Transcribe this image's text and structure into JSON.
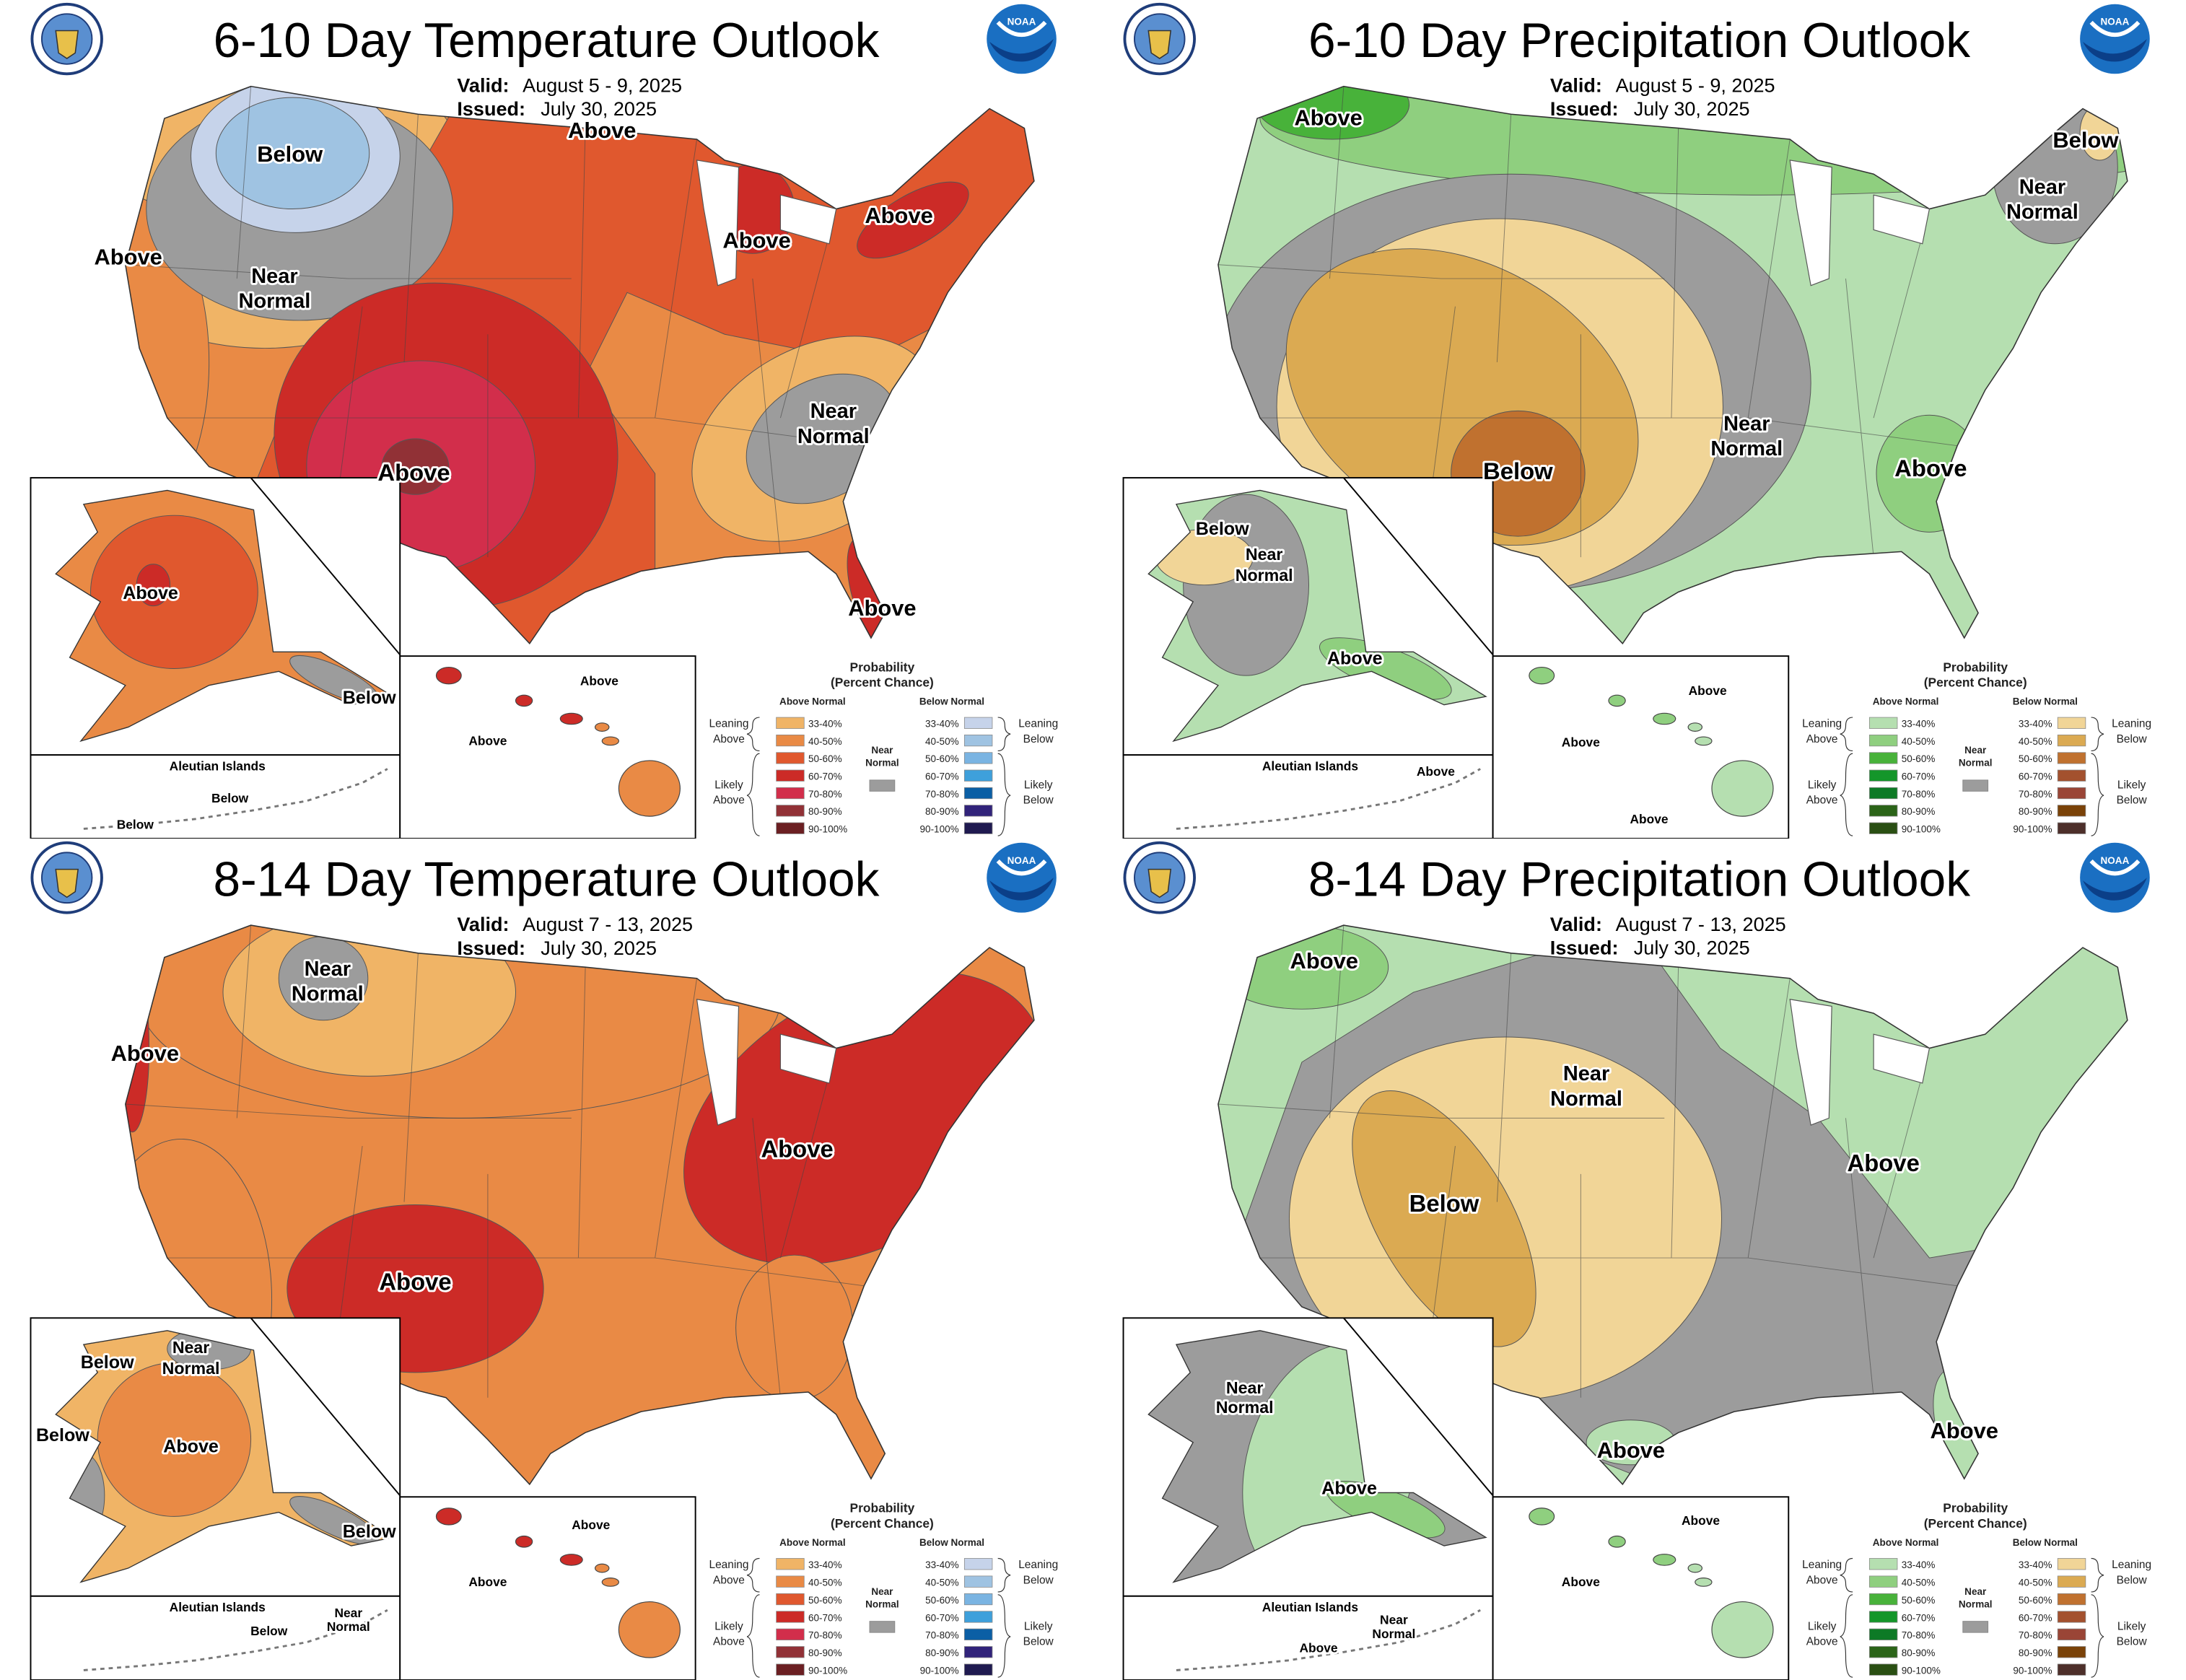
{
  "panels": [
    {
      "title": "6-10 Day Temperature Outlook",
      "valid_label": "Valid:",
      "valid": "August 5 - 9, 2025",
      "issued_label": "Issued:",
      "issued": "July 30, 2025",
      "variable": "temperature",
      "labels": [
        "Below",
        "Above",
        "Above",
        "Near",
        "Normal",
        "Above",
        "Above",
        "Near",
        "Normal",
        "Above",
        "Above",
        "Above",
        "Below",
        "Above",
        "Above",
        "Below",
        "Below"
      ]
    },
    {
      "title": "6-10 Day Precipitation Outlook",
      "valid_label": "Valid:",
      "valid": "August 5 - 9, 2025",
      "issued_label": "Issued:",
      "issued": "July 30, 2025",
      "variable": "precipitation",
      "labels": [
        "Above",
        "Below",
        "Near",
        "Normal",
        "Below",
        "Near",
        "Normal",
        "Above",
        "Below",
        "Near",
        "Normal",
        "Above",
        "Above",
        "Above",
        "Above",
        "Above"
      ]
    },
    {
      "title": "8-14 Day Temperature Outlook",
      "valid_label": "Valid:",
      "valid": "August 7 - 13, 2025",
      "issued_label": "Issued:",
      "issued": "July 30, 2025",
      "variable": "temperature",
      "labels": [
        "Near",
        "Normal",
        "Above",
        "Above",
        "Above",
        "Below",
        "Near",
        "Normal",
        "Below",
        "Above",
        "Below",
        "Above",
        "Above",
        "Below",
        "Near",
        "Normal"
      ]
    },
    {
      "title": "8-14 Day Precipitation Outlook",
      "valid_label": "Valid:",
      "valid": "August 7 - 13, 2025",
      "issued_label": "Issued:",
      "issued": "July 30, 2025",
      "variable": "precipitation",
      "labels": [
        "Above",
        "Near",
        "Normal",
        "Below",
        "Above",
        "Above",
        "Above",
        "Near",
        "Normal",
        "Above",
        "Above",
        "Above",
        "Near",
        "Normal",
        "Above"
      ]
    }
  ],
  "aleutian_label": "Aleutian Islands",
  "logos": {
    "left": "Department of Commerce seal",
    "right": "NOAA"
  },
  "legend": {
    "title": "Probability",
    "subtitle": "(Percent Chance)",
    "above_header": "Above Normal",
    "below_header": "Below Normal",
    "leaning_above": [
      "Leaning",
      "Above"
    ],
    "likely_above": [
      "Likely",
      "Above"
    ],
    "leaning_below": [
      "Leaning",
      "Below"
    ],
    "likely_below": [
      "Likely",
      "Below"
    ],
    "near_normal": [
      "Near",
      "Normal"
    ],
    "ranges": [
      "33-40%",
      "40-50%",
      "50-60%",
      "60-70%",
      "70-80%",
      "80-90%",
      "90-100%"
    ]
  },
  "colors": {
    "near_normal": "#9c9c9c",
    "temperature": {
      "above": [
        "#f0b466",
        "#e98a45",
        "#e0582e",
        "#cc2b27",
        "#d22e4b",
        "#913136",
        "#6b1f22"
      ],
      "below": [
        "#c6d3ea",
        "#9fc3e2",
        "#7ab4e2",
        "#3ea0db",
        "#0b5fa5",
        "#31237a",
        "#1f1a50"
      ]
    },
    "precipitation": {
      "above": [
        "#b5dfb0",
        "#8fcf7f",
        "#48b23a",
        "#14962a",
        "#0d7a26",
        "#2b6418",
        "#2a4f13"
      ],
      "below": [
        "#f1d597",
        "#dbaa52",
        "#c0712f",
        "#a3512e",
        "#9a4536",
        "#7a4208",
        "#4d2f2a"
      ]
    }
  }
}
